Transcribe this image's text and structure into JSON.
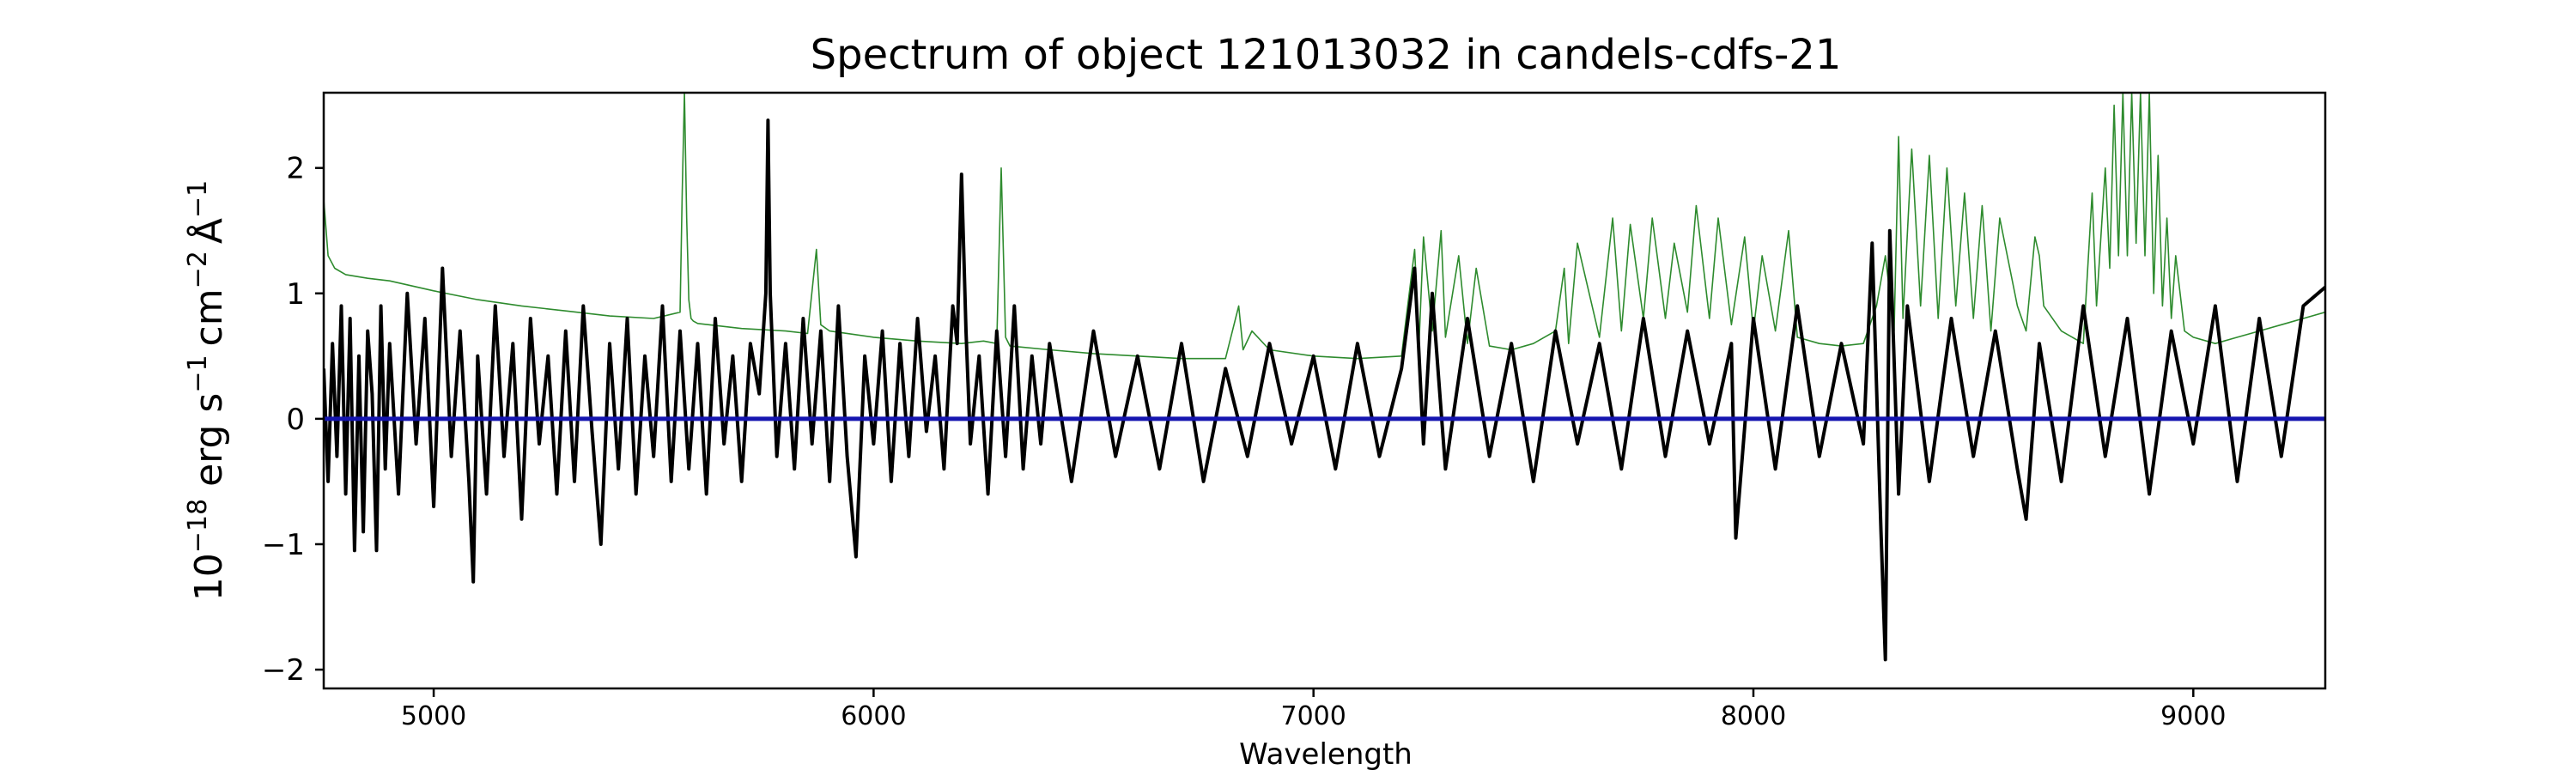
{
  "chart_data": {
    "type": "line",
    "title": "Spectrum of object 121013032 in candels-cdfs-21",
    "xlabel": "Wavelength",
    "ylabel_parts": {
      "base": "10",
      "exp_base": "−18",
      "unit1": "erg s",
      "exp1": "−1",
      "unit2": "cm",
      "exp2": "−2",
      "unit3": "Å",
      "exp3": "−1"
    },
    "xlim": [
      4750,
      9300
    ],
    "ylim": [
      -2.15,
      2.6
    ],
    "xticks": [
      5000,
      6000,
      7000,
      8000,
      9000
    ],
    "yticks": [
      -2,
      -1,
      0,
      1,
      2
    ],
    "ytick_labels": [
      "−2",
      "−1",
      "0",
      "1",
      "2"
    ],
    "grid": false,
    "legend": "none",
    "series": [
      {
        "role": "noise",
        "color": "#2e8b2e",
        "x": [
          4750,
          4760,
          4775,
          4800,
          4850,
          4900,
          5000,
          5100,
          5200,
          5300,
          5400,
          5500,
          5560,
          5565,
          5570,
          5575,
          5580,
          5585,
          5590,
          5600,
          5700,
          5800,
          5850,
          5870,
          5880,
          5900,
          6000,
          6100,
          6200,
          6250,
          6280,
          6290,
          6300,
          6310,
          6400,
          6500,
          6600,
          6700,
          6800,
          6830,
          6840,
          6860,
          6900,
          7000,
          7100,
          7200,
          7230,
          7240,
          7250,
          7270,
          7290,
          7300,
          7330,
          7350,
          7370,
          7400,
          7450,
          7500,
          7550,
          7570,
          7580,
          7600,
          7650,
          7680,
          7700,
          7720,
          7750,
          7770,
          7800,
          7820,
          7850,
          7870,
          7900,
          7920,
          7950,
          7980,
          8000,
          8020,
          8050,
          8080,
          8100,
          8150,
          8200,
          8250,
          8280,
          8300,
          8320,
          8330,
          8340,
          8360,
          8380,
          8400,
          8420,
          8440,
          8460,
          8480,
          8500,
          8520,
          8540,
          8560,
          8600,
          8620,
          8640,
          8650,
          8660,
          8700,
          8750,
          8770,
          8780,
          8800,
          8810,
          8820,
          8830,
          8840,
          8850,
          8860,
          8870,
          8880,
          8890,
          8900,
          8910,
          8920,
          8930,
          8940,
          8950,
          8960,
          8980,
          9000,
          9050,
          9100,
          9150,
          9200,
          9250,
          9300
        ],
        "y": [
          1.75,
          1.3,
          1.2,
          1.15,
          1.12,
          1.1,
          1.02,
          0.95,
          0.9,
          0.86,
          0.82,
          0.8,
          0.85,
          1.8,
          2.6,
          1.6,
          0.95,
          0.8,
          0.78,
          0.76,
          0.72,
          0.7,
          0.68,
          1.35,
          0.75,
          0.7,
          0.65,
          0.62,
          0.6,
          0.62,
          0.6,
          2.0,
          0.65,
          0.58,
          0.55,
          0.52,
          0.5,
          0.48,
          0.48,
          0.9,
          0.55,
          0.7,
          0.55,
          0.5,
          0.48,
          0.5,
          1.35,
          0.6,
          1.45,
          0.7,
          1.5,
          0.65,
          1.3,
          0.6,
          1.2,
          0.58,
          0.55,
          0.6,
          0.7,
          1.2,
          0.6,
          1.4,
          0.65,
          1.6,
          0.7,
          1.55,
          0.8,
          1.6,
          0.8,
          1.4,
          0.85,
          1.7,
          0.8,
          1.6,
          0.75,
          1.45,
          0.7,
          1.3,
          0.7,
          1.5,
          0.65,
          0.6,
          0.58,
          0.6,
          0.9,
          1.3,
          0.7,
          2.25,
          0.8,
          2.15,
          0.9,
          2.1,
          0.8,
          2.0,
          0.9,
          1.8,
          0.8,
          1.7,
          0.7,
          1.6,
          0.9,
          0.7,
          1.45,
          1.3,
          0.9,
          0.7,
          0.6,
          1.8,
          0.9,
          2.0,
          1.2,
          2.5,
          1.3,
          2.6,
          1.3,
          2.6,
          1.4,
          2.6,
          1.3,
          2.6,
          1.0,
          2.1,
          0.9,
          1.6,
          0.8,
          1.3,
          0.7,
          0.65,
          0.6,
          0.65,
          0.7,
          0.75,
          0.8,
          0.85
        ]
      },
      {
        "role": "flux",
        "color": "#000000",
        "x": [
          4750,
          4760,
          4770,
          4780,
          4790,
          4800,
          4810,
          4820,
          4830,
          4840,
          4850,
          4860,
          4870,
          4880,
          4890,
          4900,
          4920,
          4940,
          4960,
          4980,
          5000,
          5020,
          5040,
          5060,
          5080,
          5090,
          5100,
          5120,
          5140,
          5160,
          5180,
          5200,
          5220,
          5240,
          5260,
          5280,
          5300,
          5320,
          5340,
          5360,
          5380,
          5400,
          5420,
          5440,
          5460,
          5480,
          5500,
          5520,
          5540,
          5560,
          5580,
          5600,
          5620,
          5640,
          5660,
          5680,
          5700,
          5720,
          5740,
          5755,
          5760,
          5765,
          5780,
          5800,
          5820,
          5840,
          5860,
          5880,
          5900,
          5920,
          5940,
          5960,
          5980,
          6000,
          6020,
          6040,
          6060,
          6080,
          6100,
          6120,
          6140,
          6160,
          6180,
          6190,
          6200,
          6210,
          6220,
          6240,
          6260,
          6280,
          6300,
          6320,
          6340,
          6360,
          6380,
          6400,
          6450,
          6500,
          6550,
          6600,
          6650,
          6700,
          6750,
          6800,
          6850,
          6900,
          6950,
          7000,
          7050,
          7100,
          7150,
          7200,
          7230,
          7250,
          7270,
          7300,
          7350,
          7400,
          7450,
          7500,
          7550,
          7600,
          7650,
          7700,
          7750,
          7800,
          7850,
          7900,
          7950,
          7960,
          8000,
          8050,
          8100,
          8150,
          8200,
          8250,
          8270,
          8290,
          8300,
          8310,
          8330,
          8350,
          8400,
          8450,
          8500,
          8550,
          8600,
          8620,
          8650,
          8700,
          8750,
          8800,
          8850,
          8900,
          8950,
          9000,
          9050,
          9100,
          9150,
          9200,
          9250,
          9300
        ],
        "y": [
          0.4,
          -0.5,
          0.6,
          -0.3,
          0.9,
          -0.6,
          0.8,
          -1.05,
          0.5,
          -0.9,
          0.7,
          0.2,
          -1.05,
          0.9,
          -0.4,
          0.6,
          -0.6,
          1.0,
          -0.2,
          0.8,
          -0.7,
          1.2,
          -0.3,
          0.7,
          -0.5,
          -1.3,
          0.5,
          -0.6,
          0.9,
          -0.3,
          0.6,
          -0.8,
          0.8,
          -0.2,
          0.5,
          -0.6,
          0.7,
          -0.5,
          0.9,
          -0.1,
          -1.0,
          0.6,
          -0.4,
          0.8,
          -0.6,
          0.5,
          -0.3,
          0.9,
          -0.5,
          0.7,
          -0.4,
          0.6,
          -0.6,
          0.8,
          -0.2,
          0.5,
          -0.5,
          0.6,
          0.2,
          1.0,
          2.38,
          1.0,
          -0.3,
          0.6,
          -0.4,
          0.8,
          -0.2,
          0.7,
          -0.5,
          0.9,
          -0.3,
          -1.1,
          0.5,
          -0.2,
          0.7,
          -0.5,
          0.6,
          -0.3,
          0.8,
          -0.1,
          0.5,
          -0.4,
          0.9,
          0.6,
          1.95,
          0.7,
          -0.2,
          0.5,
          -0.6,
          0.7,
          -0.3,
          0.9,
          -0.4,
          0.5,
          -0.2,
          0.6,
          -0.5,
          0.7,
          -0.3,
          0.5,
          -0.4,
          0.6,
          -0.5,
          0.4,
          -0.3,
          0.6,
          -0.2,
          0.5,
          -0.4,
          0.6,
          -0.3,
          0.4,
          1.2,
          -0.2,
          1.0,
          -0.4,
          0.8,
          -0.3,
          0.6,
          -0.5,
          0.7,
          -0.2,
          0.6,
          -0.4,
          0.8,
          -0.3,
          0.7,
          -0.2,
          0.6,
          -0.95,
          0.8,
          -0.4,
          0.9,
          -0.3,
          0.6,
          -0.2,
          1.4,
          -0.9,
          -1.92,
          1.5,
          -0.6,
          0.9,
          -0.5,
          0.8,
          -0.3,
          0.7,
          -0.4,
          -0.8,
          0.6,
          -0.5,
          0.9,
          -0.3,
          0.8,
          -0.6,
          0.7,
          -0.2,
          0.9,
          -0.5,
          0.8,
          -0.3,
          0.9,
          1.05
        ]
      },
      {
        "role": "zero",
        "color": "#1515b0",
        "x": [
          4750,
          9300
        ],
        "y": [
          0,
          0
        ]
      }
    ]
  }
}
